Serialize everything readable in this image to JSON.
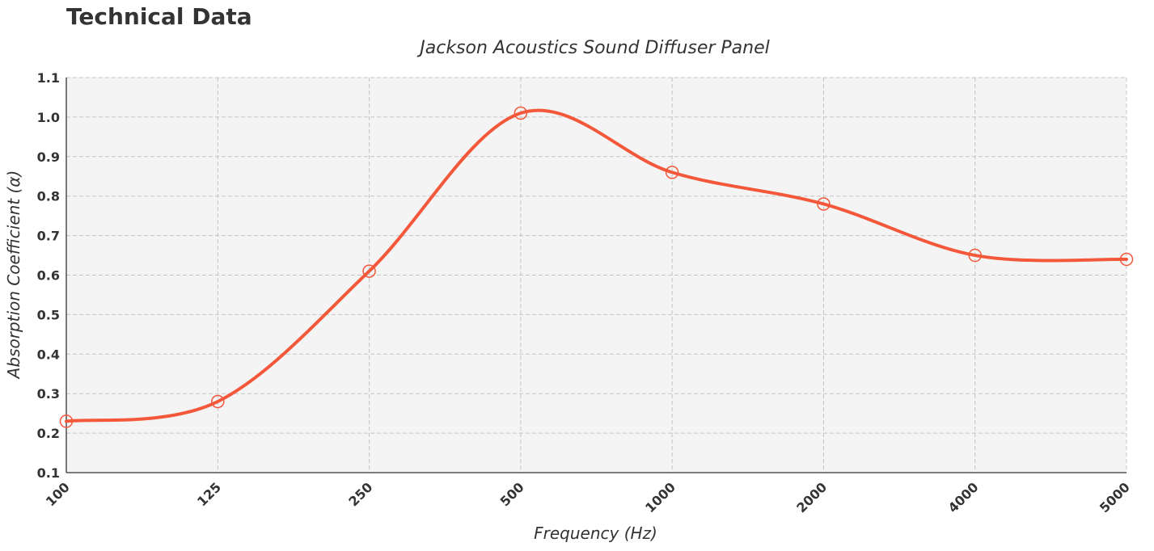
{
  "page": {
    "heading": "Technical Data"
  },
  "chart_data": {
    "type": "line",
    "title": "Jackson Acoustics Sound Diffuser Panel",
    "xlabel": "Frequency (Hz)",
    "ylabel": "Absorption Coefficient (α)",
    "categories": [
      "100",
      "125",
      "250",
      "500",
      "1000",
      "2000",
      "4000",
      "5000"
    ],
    "series": [
      {
        "name": "Absorption Coefficient",
        "values": [
          0.23,
          0.28,
          0.61,
          1.01,
          0.86,
          0.78,
          0.65,
          0.64
        ]
      }
    ],
    "ylim": [
      0.1,
      1.1
    ],
    "yticks": [
      "0.1",
      "0.2",
      "0.3",
      "0.4",
      "0.5",
      "0.6",
      "0.7",
      "0.8",
      "0.9",
      "1.0",
      "1.1"
    ],
    "grid": true,
    "line_color": "#f4583a",
    "plot_background": "#f4f4f4"
  }
}
